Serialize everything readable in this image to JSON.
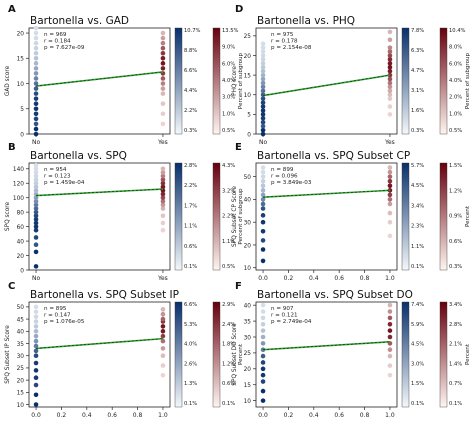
{
  "colors": {
    "blue_low": "#f4f8fb",
    "blue_high": "#08306b",
    "red_low": "#fff5f0",
    "red_high": "#67000d",
    "trend": "#2ca02c",
    "trend_dash": "#1a1a1a"
  },
  "chart_data": [
    {
      "letter": "A",
      "type": "scatter",
      "title": "Bartonella vs. GAD",
      "ylabel": "GAD score",
      "xtype": "categorical",
      "xticks": [
        "No",
        "Yes"
      ],
      "ylim": [
        0,
        21
      ],
      "yticks": [
        0,
        5,
        10,
        15,
        20
      ],
      "stats": [
        "n = 969",
        "r = 0.184",
        "p = 7.627e-09"
      ],
      "trend": [
        9.5,
        12.3
      ],
      "blue_ticks": [
        "10.7%",
        "8.8%",
        "6.6%",
        "4.4%",
        "2.2%",
        "0.3%"
      ],
      "red_ticks": [
        "13.5%",
        "9.0%",
        "6.0%",
        "4.0%",
        "3.0%",
        "1.0%",
        "0.5%"
      ],
      "colorbar_label": "Percent of subgroup",
      "group0_values": [
        0,
        1,
        2,
        3,
        4,
        5,
        6,
        7,
        8,
        9,
        10,
        11,
        12,
        13,
        14,
        15,
        16,
        17,
        18,
        19,
        20,
        21
      ],
      "group1_values": [
        2,
        4,
        6,
        8,
        9,
        10,
        11,
        12,
        13,
        14,
        15,
        16,
        17,
        18,
        19,
        20
      ]
    },
    {
      "letter": "D",
      "type": "scatter",
      "title": "Bartonella vs. PHQ",
      "ylabel": "PHQ score",
      "xtype": "categorical",
      "xticks": [
        "No",
        "Yes"
      ],
      "ylim": [
        0,
        27
      ],
      "yticks": [
        0,
        5,
        10,
        15,
        20,
        25
      ],
      "stats": [
        "n = 975",
        "r = 0.178",
        "p = 2.154e-08"
      ],
      "trend": [
        9.8,
        15.0
      ],
      "blue_ticks": [
        "7.8%",
        "6.3%",
        "4.7%",
        "3.1%",
        "1.6%",
        "0.3%"
      ],
      "red_ticks": [
        "10.4%",
        "8.0%",
        "6.0%",
        "4.0%",
        "2.0%",
        "1.0%",
        "0.5%"
      ],
      "colorbar_label": "Percent of subgroup",
      "group0_values": [
        0,
        1,
        2,
        3,
        4,
        5,
        6,
        7,
        8,
        9,
        10,
        11,
        12,
        13,
        14,
        15,
        16,
        17,
        18,
        19,
        20,
        21,
        22,
        23
      ],
      "group1_values": [
        5,
        7,
        9,
        10,
        11,
        12,
        13,
        14,
        15,
        16,
        17,
        18,
        19,
        20,
        21,
        22,
        24,
        26
      ]
    },
    {
      "letter": "B",
      "type": "scatter",
      "title": "Bartonella vs. SPQ",
      "ylabel": "SPQ score",
      "xtype": "categorical",
      "xticks": [
        "No",
        "Yes"
      ],
      "ylim": [
        0,
        148
      ],
      "yticks": [
        0,
        20,
        40,
        60,
        80,
        100,
        120,
        140
      ],
      "stats": [
        "n = 954",
        "r = 0.123",
        "p = 1.459e-04"
      ],
      "trend": [
        103,
        112
      ],
      "blue_ticks": [
        "2.8%",
        "2.2%",
        "1.7%",
        "1.1%",
        "0.6%",
        "0.1%"
      ],
      "red_ticks": [
        "4.3%",
        "3.2%",
        "2.2%",
        "1.1%",
        "0.5%"
      ],
      "colorbar_label": "Percent of subgroup",
      "group0_values": [
        5,
        25,
        35,
        45,
        55,
        60,
        65,
        70,
        75,
        80,
        85,
        90,
        95,
        100,
        105,
        110,
        115,
        120,
        125,
        130,
        135,
        140,
        145
      ],
      "group1_values": [
        55,
        65,
        75,
        85,
        90,
        95,
        100,
        105,
        110,
        115,
        120,
        125,
        130,
        135,
        140
      ]
    },
    {
      "letter": "E",
      "type": "scatter",
      "title": "Bartonella vs. SPQ Subset CP",
      "ylabel": "SPQ Subset CP Score",
      "xtype": "numeric",
      "xticks": [
        "0.0",
        "0.2",
        "0.4",
        "0.6",
        "0.8",
        "1.0"
      ],
      "ylim": [
        9,
        56
      ],
      "yticks": [
        10,
        20,
        30,
        40,
        50
      ],
      "stats": [
        "n = 899",
        "r = 0.096",
        "p = 3.849e-03"
      ],
      "trend": [
        41,
        44
      ],
      "blue_ticks": [
        "5.7%",
        "4.5%",
        "3.4%",
        "2.3%",
        "1.1%",
        "0.1%"
      ],
      "red_ticks": [
        "1.5%",
        "1.2%",
        "0.9%",
        "0.6%",
        "0.3%"
      ],
      "colorbar_label": "Percent",
      "group0_values": [
        13,
        18,
        22,
        26,
        30,
        33,
        36,
        38,
        40,
        42,
        44,
        46,
        48,
        50,
        52,
        54
      ],
      "group1_values": [
        24,
        30,
        34,
        38,
        40,
        42,
        44,
        46,
        48,
        50,
        52,
        54
      ]
    },
    {
      "letter": "C",
      "type": "scatter",
      "title": "Bartonella vs. SPQ Subset IP",
      "ylabel": "SPQ Subset IP Score",
      "xtype": "numeric",
      "xticks": [
        "0.0",
        "0.2",
        "0.4",
        "0.6",
        "0.8",
        "1.0"
      ],
      "ylim": [
        9,
        52
      ],
      "yticks": [
        10,
        15,
        20,
        25,
        30,
        35,
        40,
        45,
        50
      ],
      "stats": [
        "n = 895",
        "r = 0.147",
        "p = 1.076e-05"
      ],
      "trend": [
        33,
        37
      ],
      "blue_ticks": [
        "6.6%",
        "5.3%",
        "4.0%",
        "2.6%",
        "1.3%",
        "0.1%"
      ],
      "red_ticks": [
        "2.9%",
        "2.4%",
        "1.8%",
        "1.2%",
        "0.6%",
        "0.1%"
      ],
      "colorbar_label": "Percent",
      "group0_values": [
        10,
        14,
        18,
        21,
        24,
        27,
        30,
        32,
        34,
        36,
        38,
        40,
        42,
        44,
        46,
        48,
        50
      ],
      "group1_values": [
        22,
        26,
        30,
        33,
        36,
        38,
        40,
        42,
        44,
        45,
        47,
        49
      ]
    },
    {
      "letter": "F",
      "type": "scatter",
      "title": "Bartonella vs. SPQ Subset DO",
      "ylabel": "SPQ Subset DO Score",
      "xtype": "numeric",
      "xticks": [
        "0.0",
        "0.2",
        "0.4",
        "0.6",
        "0.8",
        "1.0"
      ],
      "ylim": [
        8,
        41
      ],
      "yticks": [
        10,
        15,
        20,
        25,
        30,
        35,
        40
      ],
      "stats": [
        "n = 907",
        "r = 0.121",
        "p = 2.749e-04"
      ],
      "trend": [
        26,
        28.5
      ],
      "blue_ticks": [
        "7.4%",
        "5.9%",
        "4.5%",
        "3.0%",
        "1.5%",
        "0.1%"
      ],
      "red_ticks": [
        "3.4%",
        "2.8%",
        "2.1%",
        "1.4%",
        "0.7%",
        "0.1%"
      ],
      "colorbar_label": "Percent",
      "group0_values": [
        10,
        13,
        16,
        18,
        20,
        22,
        24,
        26,
        28,
        30,
        32,
        34,
        36,
        38,
        40
      ],
      "group1_values": [
        18,
        21,
        24,
        26,
        28,
        30,
        32,
        34,
        36,
        38,
        40
      ]
    }
  ]
}
